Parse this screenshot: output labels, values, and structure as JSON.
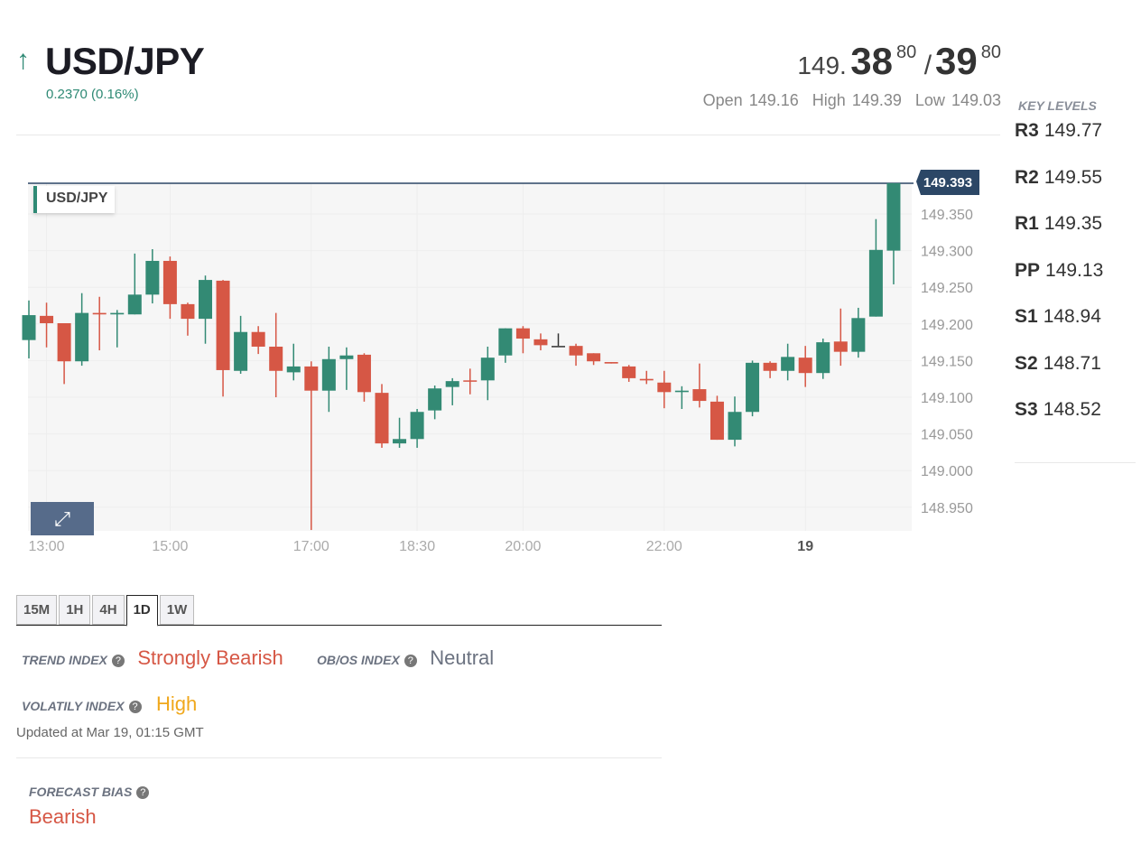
{
  "header": {
    "arrow_icon": "arrow-up-icon",
    "symbol": "USD/JPY",
    "change": "0.2370 (0.16%)",
    "bid_prefix": "149.",
    "bid_big": "38",
    "bid_pip": "80",
    "separator": "/",
    "ask_big": "39",
    "ask_pip": "80",
    "open_label": "Open",
    "open": "149.16",
    "high_label": "High",
    "high": "149.39",
    "low_label": "Low",
    "low": "149.03"
  },
  "key_levels": {
    "title": "KEY LEVELS",
    "levels": [
      {
        "name": "R3",
        "value": "149.77"
      },
      {
        "name": "R2",
        "value": "149.55"
      },
      {
        "name": "R1",
        "value": "149.35"
      },
      {
        "name": "PP",
        "value": "149.13"
      },
      {
        "name": "S1",
        "value": "148.94"
      },
      {
        "name": "S2",
        "value": "148.71"
      },
      {
        "name": "S3",
        "value": "148.52"
      }
    ]
  },
  "chart_data": {
    "type": "candlestick",
    "title": "USD/JPY",
    "current_price": "149.393",
    "colors": {
      "up": "#338a74",
      "down": "#d65745",
      "doji": "#333333"
    },
    "y_ticks": [
      "149.350",
      "149.300",
      "149.250",
      "149.200",
      "149.150",
      "149.100",
      "149.050",
      "149.000",
      "148.950"
    ],
    "x_ticks": [
      {
        "label": "13:00",
        "index": 1
      },
      {
        "label": "15:00",
        "index": 8
      },
      {
        "label": "17:00",
        "index": 16
      },
      {
        "label": "18:30",
        "index": 22
      },
      {
        "label": "20:00",
        "index": 28
      },
      {
        "label": "22:00",
        "index": 36
      },
      {
        "label": "19",
        "index": 44,
        "bold": true
      }
    ],
    "ohlc": [
      [
        149.178,
        149.232,
        149.153,
        149.212
      ],
      [
        149.211,
        149.229,
        149.168,
        149.201
      ],
      [
        149.201,
        149.201,
        149.118,
        149.149
      ],
      [
        149.149,
        149.242,
        149.143,
        149.215
      ],
      [
        149.215,
        149.237,
        149.164,
        149.213
      ],
      [
        149.213,
        149.219,
        149.168,
        149.215
      ],
      [
        149.213,
        149.296,
        149.213,
        149.24
      ],
      [
        149.24,
        149.302,
        149.228,
        149.286
      ],
      [
        149.286,
        149.292,
        149.207,
        149.227
      ],
      [
        149.227,
        149.229,
        149.184,
        149.207
      ],
      [
        149.207,
        149.266,
        149.173,
        149.26
      ],
      [
        149.259,
        149.26,
        149.101,
        149.137
      ],
      [
        149.136,
        149.211,
        149.132,
        149.189
      ],
      [
        149.189,
        149.197,
        149.159,
        149.169
      ],
      [
        149.169,
        149.215,
        149.1,
        149.136
      ],
      [
        149.134,
        149.173,
        149.123,
        149.142
      ],
      [
        149.142,
        149.149,
        148.919,
        149.109
      ],
      [
        149.109,
        149.169,
        149.08,
        149.152
      ],
      [
        149.152,
        149.168,
        149.11,
        149.157
      ],
      [
        149.158,
        149.16,
        149.094,
        149.107
      ],
      [
        149.106,
        149.118,
        149.031,
        149.037
      ],
      [
        149.037,
        149.072,
        149.031,
        149.043
      ],
      [
        149.043,
        149.084,
        149.031,
        149.08
      ],
      [
        149.082,
        149.116,
        149.07,
        149.112
      ],
      [
        149.114,
        149.126,
        149.089,
        149.122
      ],
      [
        149.123,
        149.139,
        149.104,
        149.122
      ],
      [
        149.123,
        149.169,
        149.096,
        149.154
      ],
      [
        149.157,
        149.194,
        149.147,
        149.194
      ],
      [
        149.194,
        149.197,
        149.16,
        149.18
      ],
      [
        149.179,
        149.187,
        149.164,
        149.171
      ],
      [
        149.17,
        149.187,
        149.17,
        149.17
      ],
      [
        149.17,
        149.173,
        149.143,
        149.157
      ],
      [
        149.16,
        149.16,
        149.144,
        149.149
      ],
      [
        149.148,
        149.148,
        149.146,
        149.146
      ],
      [
        149.142,
        149.144,
        149.121,
        149.126
      ],
      [
        149.125,
        149.136,
        149.118,
        149.123
      ],
      [
        149.12,
        149.136,
        149.085,
        149.107
      ],
      [
        149.107,
        149.115,
        149.084,
        149.109
      ],
      [
        149.111,
        149.146,
        149.086,
        149.095
      ],
      [
        149.094,
        149.102,
        149.042,
        149.042
      ],
      [
        149.042,
        149.101,
        149.033,
        149.08
      ],
      [
        149.08,
        149.15,
        149.074,
        149.147
      ],
      [
        149.147,
        149.149,
        149.126,
        149.136
      ],
      [
        149.136,
        149.173,
        149.123,
        149.155
      ],
      [
        149.154,
        149.17,
        149.114,
        149.133
      ],
      [
        149.133,
        149.18,
        149.125,
        149.175
      ],
      [
        149.176,
        149.221,
        149.143,
        149.162
      ],
      [
        149.162,
        149.222,
        149.154,
        149.208
      ],
      [
        149.21,
        149.343,
        149.21,
        149.301
      ],
      [
        149.3,
        149.392,
        149.254,
        149.392
      ]
    ]
  },
  "timeframes": {
    "tabs": [
      "15M",
      "1H",
      "4H",
      "1D",
      "1W"
    ],
    "active": "1D"
  },
  "indices": {
    "trend_label": "TREND INDEX",
    "trend_value": "Strongly Bearish",
    "obos_label": "OB/OS INDEX",
    "obos_value": "Neutral",
    "vol_label": "VOLATILY INDEX",
    "vol_value": "High",
    "updated": "Updated at Mar 19, 01:15 GMT",
    "forecast_label": "FORECAST BIAS",
    "forecast_value": "Bearish",
    "help_icon": "?"
  }
}
